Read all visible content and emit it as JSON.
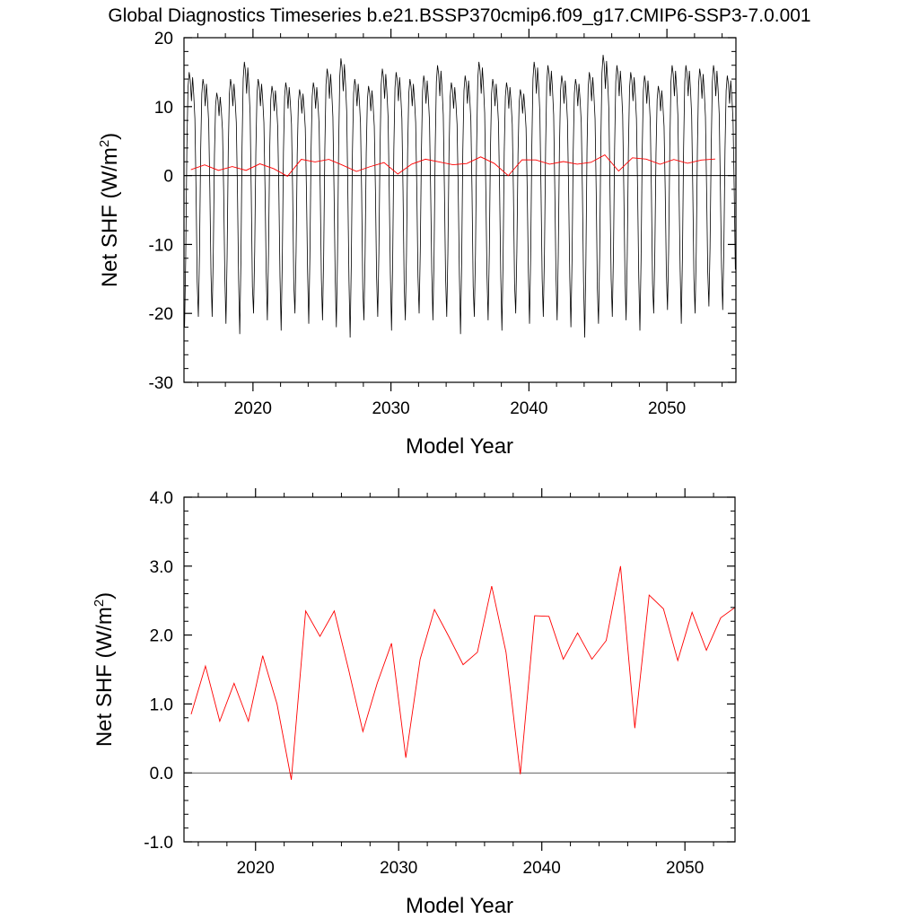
{
  "title": "Global Diagnostics Timeseries b.e21.BSSP370cmip6.f09_g17.CMIP6-SSP3-7.0.001",
  "colors": {
    "monthly": "#000000",
    "annual": "#ff0000",
    "zero_line": "#000000"
  },
  "chart_data": [
    {
      "type": "line",
      "xlabel": "Model Year",
      "ylabel": "Net SHF (W/m",
      "ylabel_sup": "2",
      "ylabel_close": ")",
      "xlim": [
        2015,
        2055
      ],
      "ylim": [
        -30,
        20
      ],
      "xticks": [
        2020,
        2030,
        2040,
        2050
      ],
      "yticks": [
        20,
        10,
        0,
        -10,
        -20,
        -30
      ],
      "ytick_labels": [
        "20",
        "10",
        "0",
        "-10",
        "-20",
        "-30"
      ],
      "zero_line": 0,
      "series": [
        {
          "kind": "monthly",
          "years": [
            2015,
            2016,
            2017,
            2018,
            2019,
            2020,
            2021,
            2022,
            2023,
            2024,
            2025,
            2026,
            2027,
            2028,
            2029,
            2030,
            2031,
            2032,
            2033,
            2034,
            2035,
            2036,
            2037,
            2038,
            2039,
            2040,
            2041,
            2042,
            2043,
            2044,
            2045,
            2046,
            2047,
            2048,
            2049,
            2050,
            2051,
            2052,
            2053,
            2054
          ],
          "winter_min": [
            -22.0,
            -20.5,
            -20.5,
            -21.5,
            -23.0,
            -20.0,
            -21.0,
            -22.5,
            -20.0,
            -21.5,
            -21.0,
            -22.0,
            -23.5,
            -21.0,
            -20.5,
            -22.5,
            -21.0,
            -20.0,
            -21.0,
            -20.5,
            -23.0,
            -20.5,
            -21.0,
            -22.5,
            -20.0,
            -21.5,
            -20.5,
            -21.0,
            -22.0,
            -23.5,
            -21.5,
            -20.5,
            -21.0,
            -22.5,
            -20.0,
            -19.5,
            -21.5,
            -20.0,
            -19.0,
            -19.5
          ],
          "summer_max": [
            15.0,
            14.0,
            12.0,
            14.0,
            16.5,
            14.0,
            13.0,
            13.5,
            12.5,
            13.5,
            15.5,
            17.0,
            14.0,
            13.0,
            15.5,
            15.0,
            14.0,
            14.5,
            16.0,
            13.5,
            14.5,
            16.5,
            14.0,
            13.5,
            12.5,
            16.5,
            16.0,
            14.5,
            14.0,
            15.0,
            17.5,
            16.0,
            15.0,
            14.5,
            13.0,
            16.0,
            16.0,
            15.5,
            16.0,
            14.5
          ]
        },
        {
          "kind": "annual",
          "x": [
            2015.5,
            2016.5,
            2017.5,
            2018.5,
            2019.5,
            2020.5,
            2021.5,
            2022.5,
            2023.5,
            2024.5,
            2025.5,
            2026.5,
            2027.5,
            2028.5,
            2029.5,
            2030.5,
            2031.5,
            2032.5,
            2033.5,
            2034.5,
            2035.5,
            2036.5,
            2037.5,
            2038.5,
            2039.5,
            2040.5,
            2041.5,
            2042.5,
            2043.5,
            2044.5,
            2045.5,
            2046.5,
            2047.5,
            2048.5,
            2049.5,
            2050.5,
            2051.5,
            2052.5,
            2053.5
          ],
          "values": [
            0.85,
            1.55,
            0.75,
            1.3,
            0.75,
            1.7,
            1.0,
            -0.1,
            2.35,
            1.98,
            2.35,
            1.5,
            0.6,
            1.3,
            1.88,
            0.22,
            1.65,
            2.37,
            1.98,
            1.57,
            1.75,
            2.71,
            1.75,
            -0.02,
            2.28,
            2.27,
            1.65,
            2.03,
            1.65,
            1.92,
            3.0,
            0.65,
            2.58,
            2.38,
            1.63,
            2.33,
            1.78,
            2.25,
            2.4
          ]
        }
      ]
    },
    {
      "type": "line",
      "xlabel": "Model Year",
      "ylabel": "Net SHF (W/m",
      "ylabel_sup": "2",
      "ylabel_close": ")",
      "xlim": [
        2015,
        2053.5
      ],
      "ylim": [
        -1,
        4
      ],
      "xticks": [
        2020,
        2030,
        2040,
        2050
      ],
      "yticks": [
        4,
        3,
        2,
        1,
        0,
        -1
      ],
      "ytick_labels": [
        "4.0",
        "3.0",
        "2.0",
        "1.0",
        "0.0",
        "-1.0"
      ],
      "zero_line": 0,
      "series": [
        {
          "kind": "annual",
          "x": [
            2015.5,
            2016.5,
            2017.5,
            2018.5,
            2019.5,
            2020.5,
            2021.5,
            2022.5,
            2023.5,
            2024.5,
            2025.5,
            2026.5,
            2027.5,
            2028.5,
            2029.5,
            2030.5,
            2031.5,
            2032.5,
            2033.5,
            2034.5,
            2035.5,
            2036.5,
            2037.5,
            2038.5,
            2039.5,
            2040.5,
            2041.5,
            2042.5,
            2043.5,
            2044.5,
            2045.5,
            2046.5,
            2047.5,
            2048.5,
            2049.5,
            2050.5,
            2051.5,
            2052.5,
            2053.5
          ],
          "values": [
            0.85,
            1.55,
            0.75,
            1.3,
            0.75,
            1.7,
            1.0,
            -0.1,
            2.35,
            1.98,
            2.35,
            1.5,
            0.6,
            1.3,
            1.88,
            0.22,
            1.65,
            2.37,
            1.98,
            1.57,
            1.75,
            2.71,
            1.75,
            -0.02,
            2.28,
            2.27,
            1.65,
            2.03,
            1.65,
            1.92,
            3.0,
            0.65,
            2.58,
            2.38,
            1.63,
            2.33,
            1.78,
            2.25,
            2.4
          ]
        }
      ]
    }
  ]
}
